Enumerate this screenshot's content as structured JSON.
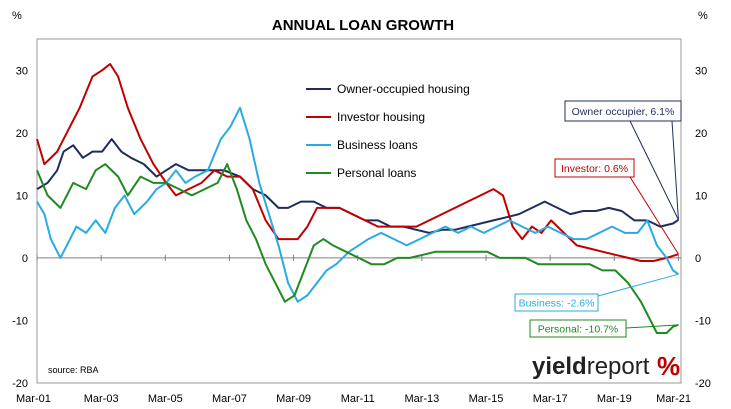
{
  "chart_data": {
    "type": "line",
    "title": "ANNUAL LOAN GROWTH",
    "ylabel_left": "%",
    "ylabel_right": "%",
    "ylim": [
      -20,
      35
    ],
    "yticks": [
      -20,
      -10,
      0,
      10,
      20,
      30
    ],
    "xlim": [
      2001.17,
      2021.25
    ],
    "xticks": [
      {
        "x": 2001.17,
        "label": "Mar-01"
      },
      {
        "x": 2003.17,
        "label": "Mar-03"
      },
      {
        "x": 2005.17,
        "label": "Mar-05"
      },
      {
        "x": 2007.17,
        "label": "Mar-07"
      },
      {
        "x": 2009.17,
        "label": "Mar-09"
      },
      {
        "x": 2011.17,
        "label": "Mar-11"
      },
      {
        "x": 2013.17,
        "label": "Mar-13"
      },
      {
        "x": 2015.17,
        "label": "Mar-15"
      },
      {
        "x": 2017.17,
        "label": "Mar-17"
      },
      {
        "x": 2019.17,
        "label": "Mar-19"
      },
      {
        "x": 2021.17,
        "label": "Mar-21"
      }
    ],
    "series": [
      {
        "name": "Owner-occupied housing",
        "color": "#1f2d5c",
        "points": [
          [
            2001.17,
            11
          ],
          [
            2001.5,
            12
          ],
          [
            2001.8,
            14
          ],
          [
            2002.0,
            17
          ],
          [
            2002.3,
            18
          ],
          [
            2002.6,
            16
          ],
          [
            2002.9,
            17
          ],
          [
            2003.2,
            17
          ],
          [
            2003.5,
            19
          ],
          [
            2003.8,
            17
          ],
          [
            2004.1,
            16
          ],
          [
            2004.5,
            15
          ],
          [
            2004.9,
            13
          ],
          [
            2005.2,
            14
          ],
          [
            2005.5,
            15
          ],
          [
            2005.9,
            14
          ],
          [
            2006.2,
            14
          ],
          [
            2006.6,
            14
          ],
          [
            2007.0,
            14
          ],
          [
            2007.5,
            13
          ],
          [
            2007.9,
            11
          ],
          [
            2008.3,
            10
          ],
          [
            2008.7,
            8
          ],
          [
            2009.0,
            8
          ],
          [
            2009.4,
            9
          ],
          [
            2009.8,
            9
          ],
          [
            2010.2,
            8
          ],
          [
            2010.6,
            8
          ],
          [
            2011.0,
            7
          ],
          [
            2011.4,
            6
          ],
          [
            2011.8,
            6
          ],
          [
            2012.2,
            5
          ],
          [
            2012.6,
            5
          ],
          [
            2013.0,
            4.5
          ],
          [
            2013.4,
            4
          ],
          [
            2013.8,
            4.5
          ],
          [
            2014.2,
            4.5
          ],
          [
            2014.6,
            5
          ],
          [
            2015.0,
            5.5
          ],
          [
            2015.4,
            6
          ],
          [
            2015.8,
            6.5
          ],
          [
            2016.2,
            7
          ],
          [
            2016.6,
            8
          ],
          [
            2017.0,
            9
          ],
          [
            2017.4,
            8
          ],
          [
            2017.8,
            7
          ],
          [
            2018.2,
            7.5
          ],
          [
            2018.6,
            7.5
          ],
          [
            2019.0,
            8
          ],
          [
            2019.4,
            7.5
          ],
          [
            2019.8,
            6
          ],
          [
            2020.2,
            6
          ],
          [
            2020.6,
            5
          ],
          [
            2021.0,
            5.5
          ],
          [
            2021.17,
            6.1
          ]
        ]
      },
      {
        "name": "Investor housing",
        "color": "#c00000",
        "points": [
          [
            2001.17,
            19
          ],
          [
            2001.4,
            15
          ],
          [
            2001.8,
            17
          ],
          [
            2002.1,
            20
          ],
          [
            2002.5,
            24
          ],
          [
            2002.9,
            29
          ],
          [
            2003.2,
            30
          ],
          [
            2003.45,
            31
          ],
          [
            2003.7,
            29
          ],
          [
            2004.0,
            24
          ],
          [
            2004.4,
            19
          ],
          [
            2004.8,
            15
          ],
          [
            2005.2,
            12
          ],
          [
            2005.5,
            10
          ],
          [
            2005.9,
            11
          ],
          [
            2006.3,
            12
          ],
          [
            2006.7,
            14
          ],
          [
            2007.1,
            13
          ],
          [
            2007.5,
            13
          ],
          [
            2007.9,
            11
          ],
          [
            2008.3,
            6
          ],
          [
            2008.7,
            3
          ],
          [
            2009.0,
            3
          ],
          [
            2009.3,
            3
          ],
          [
            2009.6,
            5
          ],
          [
            2009.9,
            8
          ],
          [
            2010.2,
            8
          ],
          [
            2010.6,
            8
          ],
          [
            2011.0,
            7
          ],
          [
            2011.4,
            6
          ],
          [
            2011.8,
            5
          ],
          [
            2012.2,
            5
          ],
          [
            2012.6,
            5
          ],
          [
            2013.0,
            5
          ],
          [
            2013.4,
            6
          ],
          [
            2013.8,
            7
          ],
          [
            2014.2,
            8
          ],
          [
            2014.6,
            9
          ],
          [
            2015.0,
            10
          ],
          [
            2015.4,
            11
          ],
          [
            2015.7,
            10
          ],
          [
            2016.0,
            5
          ],
          [
            2016.3,
            3
          ],
          [
            2016.6,
            5
          ],
          [
            2016.9,
            4
          ],
          [
            2017.2,
            6
          ],
          [
            2017.6,
            4
          ],
          [
            2018.0,
            2
          ],
          [
            2018.4,
            1.5
          ],
          [
            2018.8,
            1
          ],
          [
            2019.2,
            0.5
          ],
          [
            2019.6,
            0
          ],
          [
            2020.0,
            -0.5
          ],
          [
            2020.4,
            -0.5
          ],
          [
            2020.8,
            0
          ],
          [
            2021.17,
            0.6
          ]
        ]
      },
      {
        "name": "Business loans",
        "color": "#29abe2",
        "points": [
          [
            2001.17,
            9
          ],
          [
            2001.4,
            7
          ],
          [
            2001.6,
            3
          ],
          [
            2001.9,
            0
          ],
          [
            2002.1,
            2
          ],
          [
            2002.4,
            5
          ],
          [
            2002.7,
            4
          ],
          [
            2003.0,
            6
          ],
          [
            2003.3,
            4
          ],
          [
            2003.6,
            8
          ],
          [
            2003.9,
            10
          ],
          [
            2004.2,
            7
          ],
          [
            2004.6,
            9
          ],
          [
            2004.9,
            11
          ],
          [
            2005.2,
            12
          ],
          [
            2005.5,
            14
          ],
          [
            2005.8,
            12
          ],
          [
            2006.1,
            13
          ],
          [
            2006.5,
            14
          ],
          [
            2006.9,
            19
          ],
          [
            2007.2,
            21
          ],
          [
            2007.5,
            24
          ],
          [
            2007.8,
            19
          ],
          [
            2008.1,
            12
          ],
          [
            2008.4,
            7
          ],
          [
            2008.7,
            2
          ],
          [
            2009.0,
            -4
          ],
          [
            2009.3,
            -7
          ],
          [
            2009.6,
            -6
          ],
          [
            2009.9,
            -4
          ],
          [
            2010.2,
            -2
          ],
          [
            2010.5,
            -1
          ],
          [
            2010.9,
            1
          ],
          [
            2011.2,
            2
          ],
          [
            2011.5,
            3
          ],
          [
            2011.9,
            4
          ],
          [
            2012.3,
            3
          ],
          [
            2012.7,
            2
          ],
          [
            2013.1,
            3
          ],
          [
            2013.5,
            4
          ],
          [
            2013.9,
            5
          ],
          [
            2014.3,
            4
          ],
          [
            2014.7,
            5
          ],
          [
            2015.1,
            4
          ],
          [
            2015.5,
            5
          ],
          [
            2015.9,
            6
          ],
          [
            2016.3,
            5
          ],
          [
            2016.7,
            4
          ],
          [
            2017.1,
            5
          ],
          [
            2017.5,
            4
          ],
          [
            2017.9,
            3
          ],
          [
            2018.3,
            3
          ],
          [
            2018.7,
            4
          ],
          [
            2019.1,
            5
          ],
          [
            2019.5,
            4
          ],
          [
            2019.9,
            4
          ],
          [
            2020.2,
            6
          ],
          [
            2020.5,
            2
          ],
          [
            2020.8,
            0
          ],
          [
            2021.0,
            -2
          ],
          [
            2021.17,
            -2.6
          ]
        ]
      },
      {
        "name": "Personal loans",
        "color": "#1f8a1f",
        "points": [
          [
            2001.17,
            14
          ],
          [
            2001.5,
            10
          ],
          [
            2001.9,
            8
          ],
          [
            2002.3,
            12
          ],
          [
            2002.7,
            11
          ],
          [
            2003.0,
            14
          ],
          [
            2003.3,
            15
          ],
          [
            2003.7,
            13
          ],
          [
            2004.0,
            10
          ],
          [
            2004.4,
            13
          ],
          [
            2004.8,
            12
          ],
          [
            2005.2,
            12
          ],
          [
            2005.6,
            11
          ],
          [
            2006.0,
            10
          ],
          [
            2006.4,
            11
          ],
          [
            2006.8,
            12
          ],
          [
            2007.1,
            15
          ],
          [
            2007.4,
            11
          ],
          [
            2007.7,
            6
          ],
          [
            2008.0,
            3
          ],
          [
            2008.3,
            -1
          ],
          [
            2008.6,
            -4
          ],
          [
            2008.9,
            -7
          ],
          [
            2009.2,
            -6
          ],
          [
            2009.5,
            -2
          ],
          [
            2009.8,
            2
          ],
          [
            2010.1,
            3
          ],
          [
            2010.4,
            2
          ],
          [
            2010.8,
            1
          ],
          [
            2011.2,
            0
          ],
          [
            2011.6,
            -1
          ],
          [
            2012.0,
            -1
          ],
          [
            2012.4,
            0
          ],
          [
            2012.8,
            0
          ],
          [
            2013.2,
            0.5
          ],
          [
            2013.6,
            1
          ],
          [
            2014.0,
            1
          ],
          [
            2014.4,
            1
          ],
          [
            2014.8,
            1
          ],
          [
            2015.2,
            1
          ],
          [
            2015.6,
            0
          ],
          [
            2016.0,
            0
          ],
          [
            2016.4,
            0
          ],
          [
            2016.8,
            -1
          ],
          [
            2017.2,
            -1
          ],
          [
            2017.6,
            -1
          ],
          [
            2018.0,
            -1
          ],
          [
            2018.4,
            -1
          ],
          [
            2018.8,
            -2
          ],
          [
            2019.2,
            -2
          ],
          [
            2019.6,
            -4
          ],
          [
            2020.0,
            -7
          ],
          [
            2020.3,
            -10
          ],
          [
            2020.5,
            -12
          ],
          [
            2020.8,
            -12
          ],
          [
            2021.0,
            -11
          ],
          [
            2021.17,
            -10.7
          ]
        ]
      }
    ],
    "legend": {
      "placement": "top-center"
    },
    "callouts": [
      {
        "text": "Owner occupier, 6.1%",
        "series": "Owner-occupied housing",
        "color": "#1f2d5c"
      },
      {
        "text": "Investor: 0.6%",
        "series": "Investor housing",
        "color": "#c00000"
      },
      {
        "text": "Business: -2.6%",
        "series": "Business loans",
        "color": "#29abe2"
      },
      {
        "text": "Personal: -10.7%",
        "series": "Personal loans",
        "color": "#1f8a1f"
      }
    ],
    "source": "source: RBA",
    "grid": false
  },
  "logo": {
    "part1": "yield",
    "part2": "report",
    "symbol": "%"
  }
}
